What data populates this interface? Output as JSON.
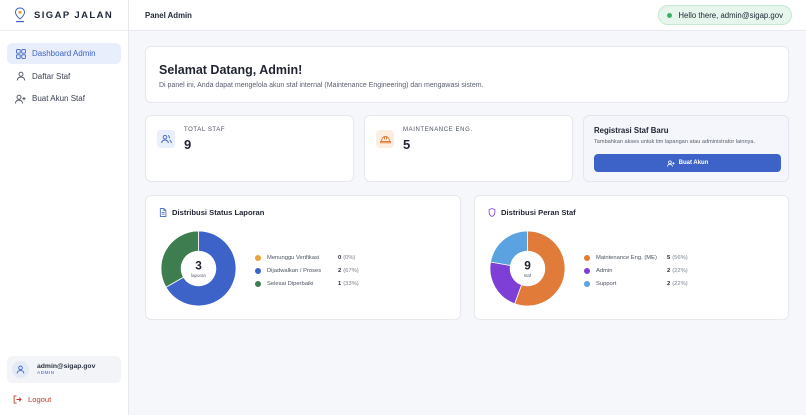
{
  "brand": {
    "name": "SIGAP JALAN"
  },
  "sidebar": {
    "items": [
      {
        "label": "Dashboard Admin",
        "icon": "grid-icon",
        "active": true
      },
      {
        "label": "Daftar Staf",
        "icon": "user-icon",
        "active": false
      },
      {
        "label": "Buat Akun Staf",
        "icon": "user-plus-icon",
        "active": false
      }
    ],
    "user": {
      "email": "admin@sigap.gov",
      "role": "ADMIN"
    },
    "logout_label": "Logout"
  },
  "header": {
    "title": "Panel Admin",
    "greeting": "Hello there, admin@sigap.gov"
  },
  "welcome": {
    "title": "Selamat Datang, Admin!",
    "subtitle": "Di panel ini, Anda dapat mengelola akun staf internal (Maintenance Engineering) dan mengawasi sistem."
  },
  "stats": [
    {
      "label": "TOTAL STAF",
      "value": "9",
      "icon": "users-icon"
    },
    {
      "label": "MAINTENANCE ENG.",
      "value": "5",
      "icon": "hard-hat-icon"
    }
  ],
  "registration": {
    "title": "Registrasi Staf Baru",
    "description": "Tambahkan akses untuk tim lapangan atau administrator lainnya.",
    "button_label": "Buat Akun"
  },
  "colors": {
    "primary": "#3d63c9",
    "orange": "#e07b39",
    "blue": "#3d63c9",
    "green": "#3e7d4f",
    "purple": "#7e3fd6",
    "lightblue": "#5aa2e0"
  },
  "chart_data": [
    {
      "type": "pie",
      "title": "Distribusi Status Laporan",
      "center_value": "3",
      "center_label": "laporan",
      "series": [
        {
          "name": "Menunggu Verifikasi",
          "value": 0,
          "pct": "(0%)",
          "color": "#e8a33d"
        },
        {
          "name": "Dijadwalkan / Proses",
          "value": 2,
          "pct": "(67%)",
          "color": "#3d63c9"
        },
        {
          "name": "Selesai Diperbaiki",
          "value": 1,
          "pct": "(33%)",
          "color": "#3e7d4f"
        }
      ]
    },
    {
      "type": "pie",
      "title": "Distribusi Peran Staf",
      "center_value": "9",
      "center_label": "staf",
      "series": [
        {
          "name": "Maintenance Eng. (ME)",
          "value": 5,
          "pct": "(56%)",
          "color": "#e07b39"
        },
        {
          "name": "Admin",
          "value": 2,
          "pct": "(22%)",
          "color": "#7e3fd6"
        },
        {
          "name": "Support",
          "value": 2,
          "pct": "(22%)",
          "color": "#5aa2e0"
        }
      ]
    }
  ]
}
